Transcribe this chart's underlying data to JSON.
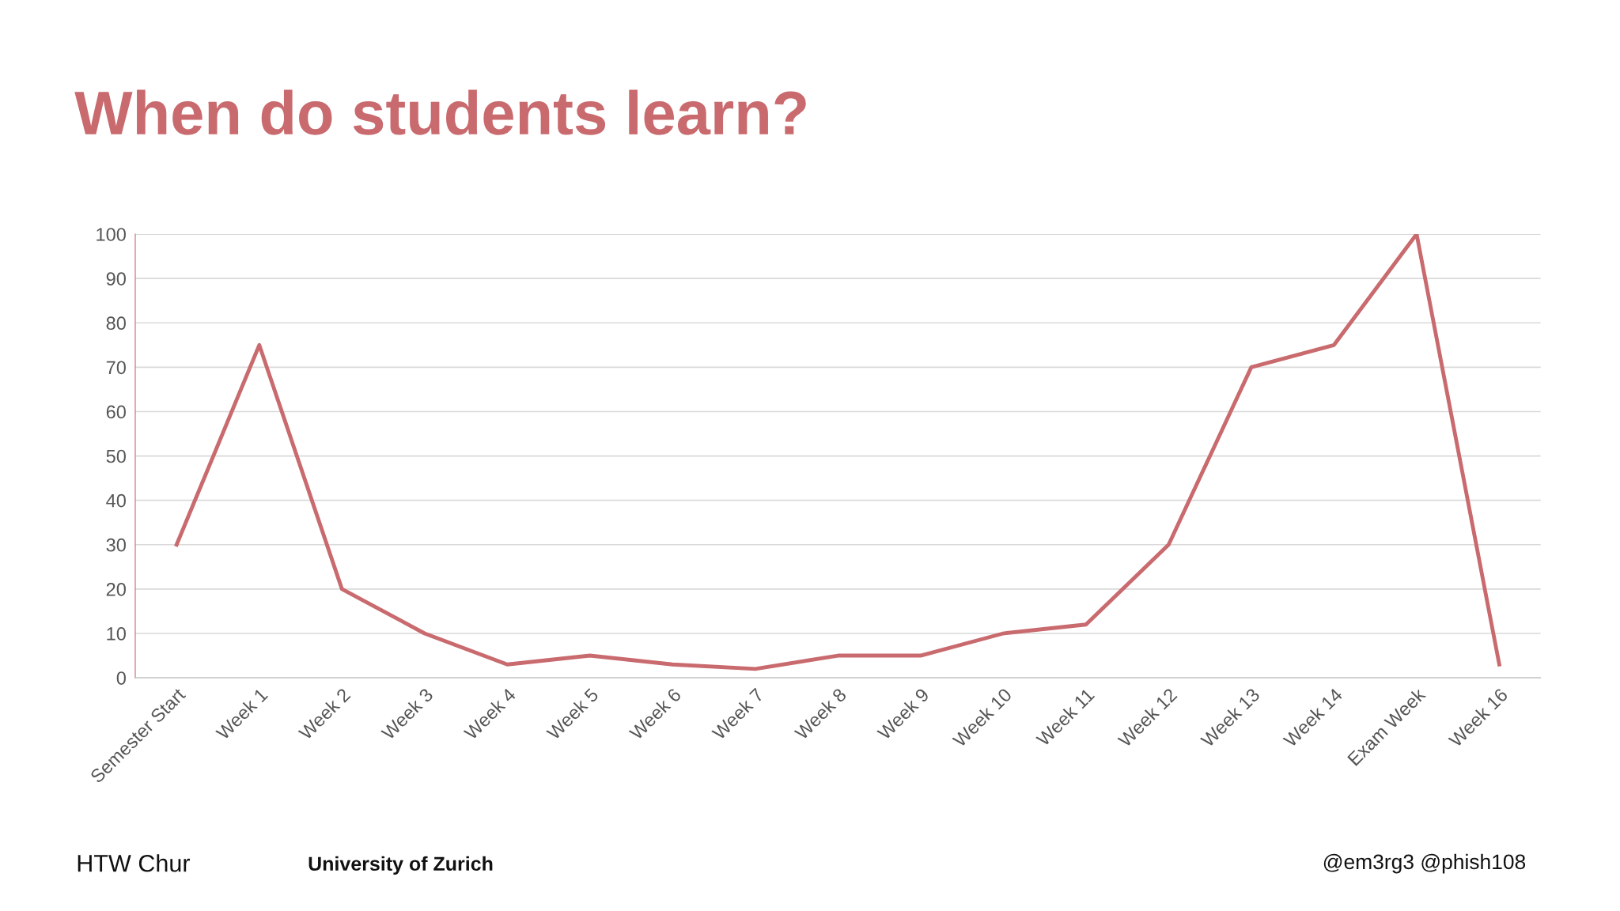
{
  "chart_data": {
    "type": "line",
    "title": "When do students learn?",
    "categories": [
      "Semester Start",
      "Week 1",
      "Week 2",
      "Week 3",
      "Week 4",
      "Week 5",
      "Week 6",
      "Week 7",
      "Week 8",
      "Week 9",
      "Week 10",
      "Week 11",
      "Week 12",
      "Week 13",
      "Week 14",
      "Exam Week",
      "Week 16"
    ],
    "series": [
      {
        "color": "#c96a6e",
        "values": [
          30,
          75,
          20,
          10,
          3,
          5,
          3,
          2,
          5,
          5,
          10,
          12,
          30,
          70,
          75,
          100,
          3
        ]
      }
    ],
    "ylim": [
      0,
      100
    ],
    "yticks": [
      0,
      10,
      20,
      30,
      40,
      50,
      60,
      70,
      80,
      90,
      100
    ],
    "grid": "y",
    "legend": false,
    "marker": "none",
    "line_style": "solid",
    "annotations": [
      "HTW Chur",
      "University of Zurich",
      "@em3rg3 @phish108"
    ]
  }
}
